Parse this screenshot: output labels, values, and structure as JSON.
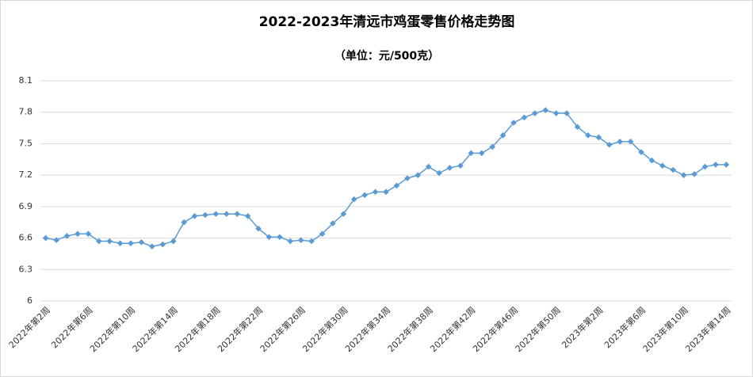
{
  "chart_data": {
    "type": "line",
    "title": "2022-2023年清远市鸡蛋零售价格走势图",
    "subtitle": "（单位：元/500克）",
    "categories": [
      "2022年第2周",
      null,
      null,
      null,
      "2022年第6周",
      null,
      null,
      null,
      "2022年第10周",
      null,
      null,
      null,
      "2022年第14周",
      null,
      null,
      null,
      "2022年第18周",
      null,
      null,
      null,
      "2022年第22周",
      null,
      null,
      null,
      "2022年第26周",
      null,
      null,
      null,
      "2022年第30周",
      null,
      null,
      null,
      "2022年第34周",
      null,
      null,
      null,
      "2022年第38周",
      null,
      null,
      null,
      "2022年第42周",
      null,
      null,
      null,
      "2022年第46周",
      null,
      null,
      null,
      "2022年第50周",
      null,
      null,
      null,
      "2023年第2周",
      null,
      null,
      null,
      "2023年第6周",
      null,
      null,
      null,
      "2023年第10周",
      null,
      null,
      null,
      "2023年第14周"
    ],
    "series": [
      {
        "color": "#5b9bd5",
        "values": [
          6.6,
          6.58,
          6.62,
          6.64,
          6.64,
          6.57,
          6.57,
          6.55,
          6.55,
          6.56,
          6.52,
          6.54,
          6.57,
          6.75,
          6.81,
          6.82,
          6.83,
          6.83,
          6.83,
          6.81,
          6.69,
          6.61,
          6.61,
          6.57,
          6.58,
          6.57,
          6.64,
          6.74,
          6.83,
          6.97,
          7.01,
          7.04,
          7.04,
          7.1,
          7.17,
          7.2,
          7.28,
          7.22,
          7.27,
          7.29,
          7.41,
          7.41,
          7.47,
          7.58,
          7.7,
          7.75,
          7.79,
          7.82,
          7.79,
          7.79,
          7.66,
          7.58,
          7.56,
          7.49,
          7.52,
          7.52,
          7.42,
          7.34,
          7.29,
          7.25,
          7.2,
          7.21,
          7.28,
          7.3,
          7.3
        ]
      }
    ],
    "ylim": [
      6,
      8.1
    ],
    "yticks": [
      6,
      6.3,
      6.6,
      6.9,
      7.2,
      7.5,
      7.8,
      8.1
    ],
    "grid": true
  }
}
